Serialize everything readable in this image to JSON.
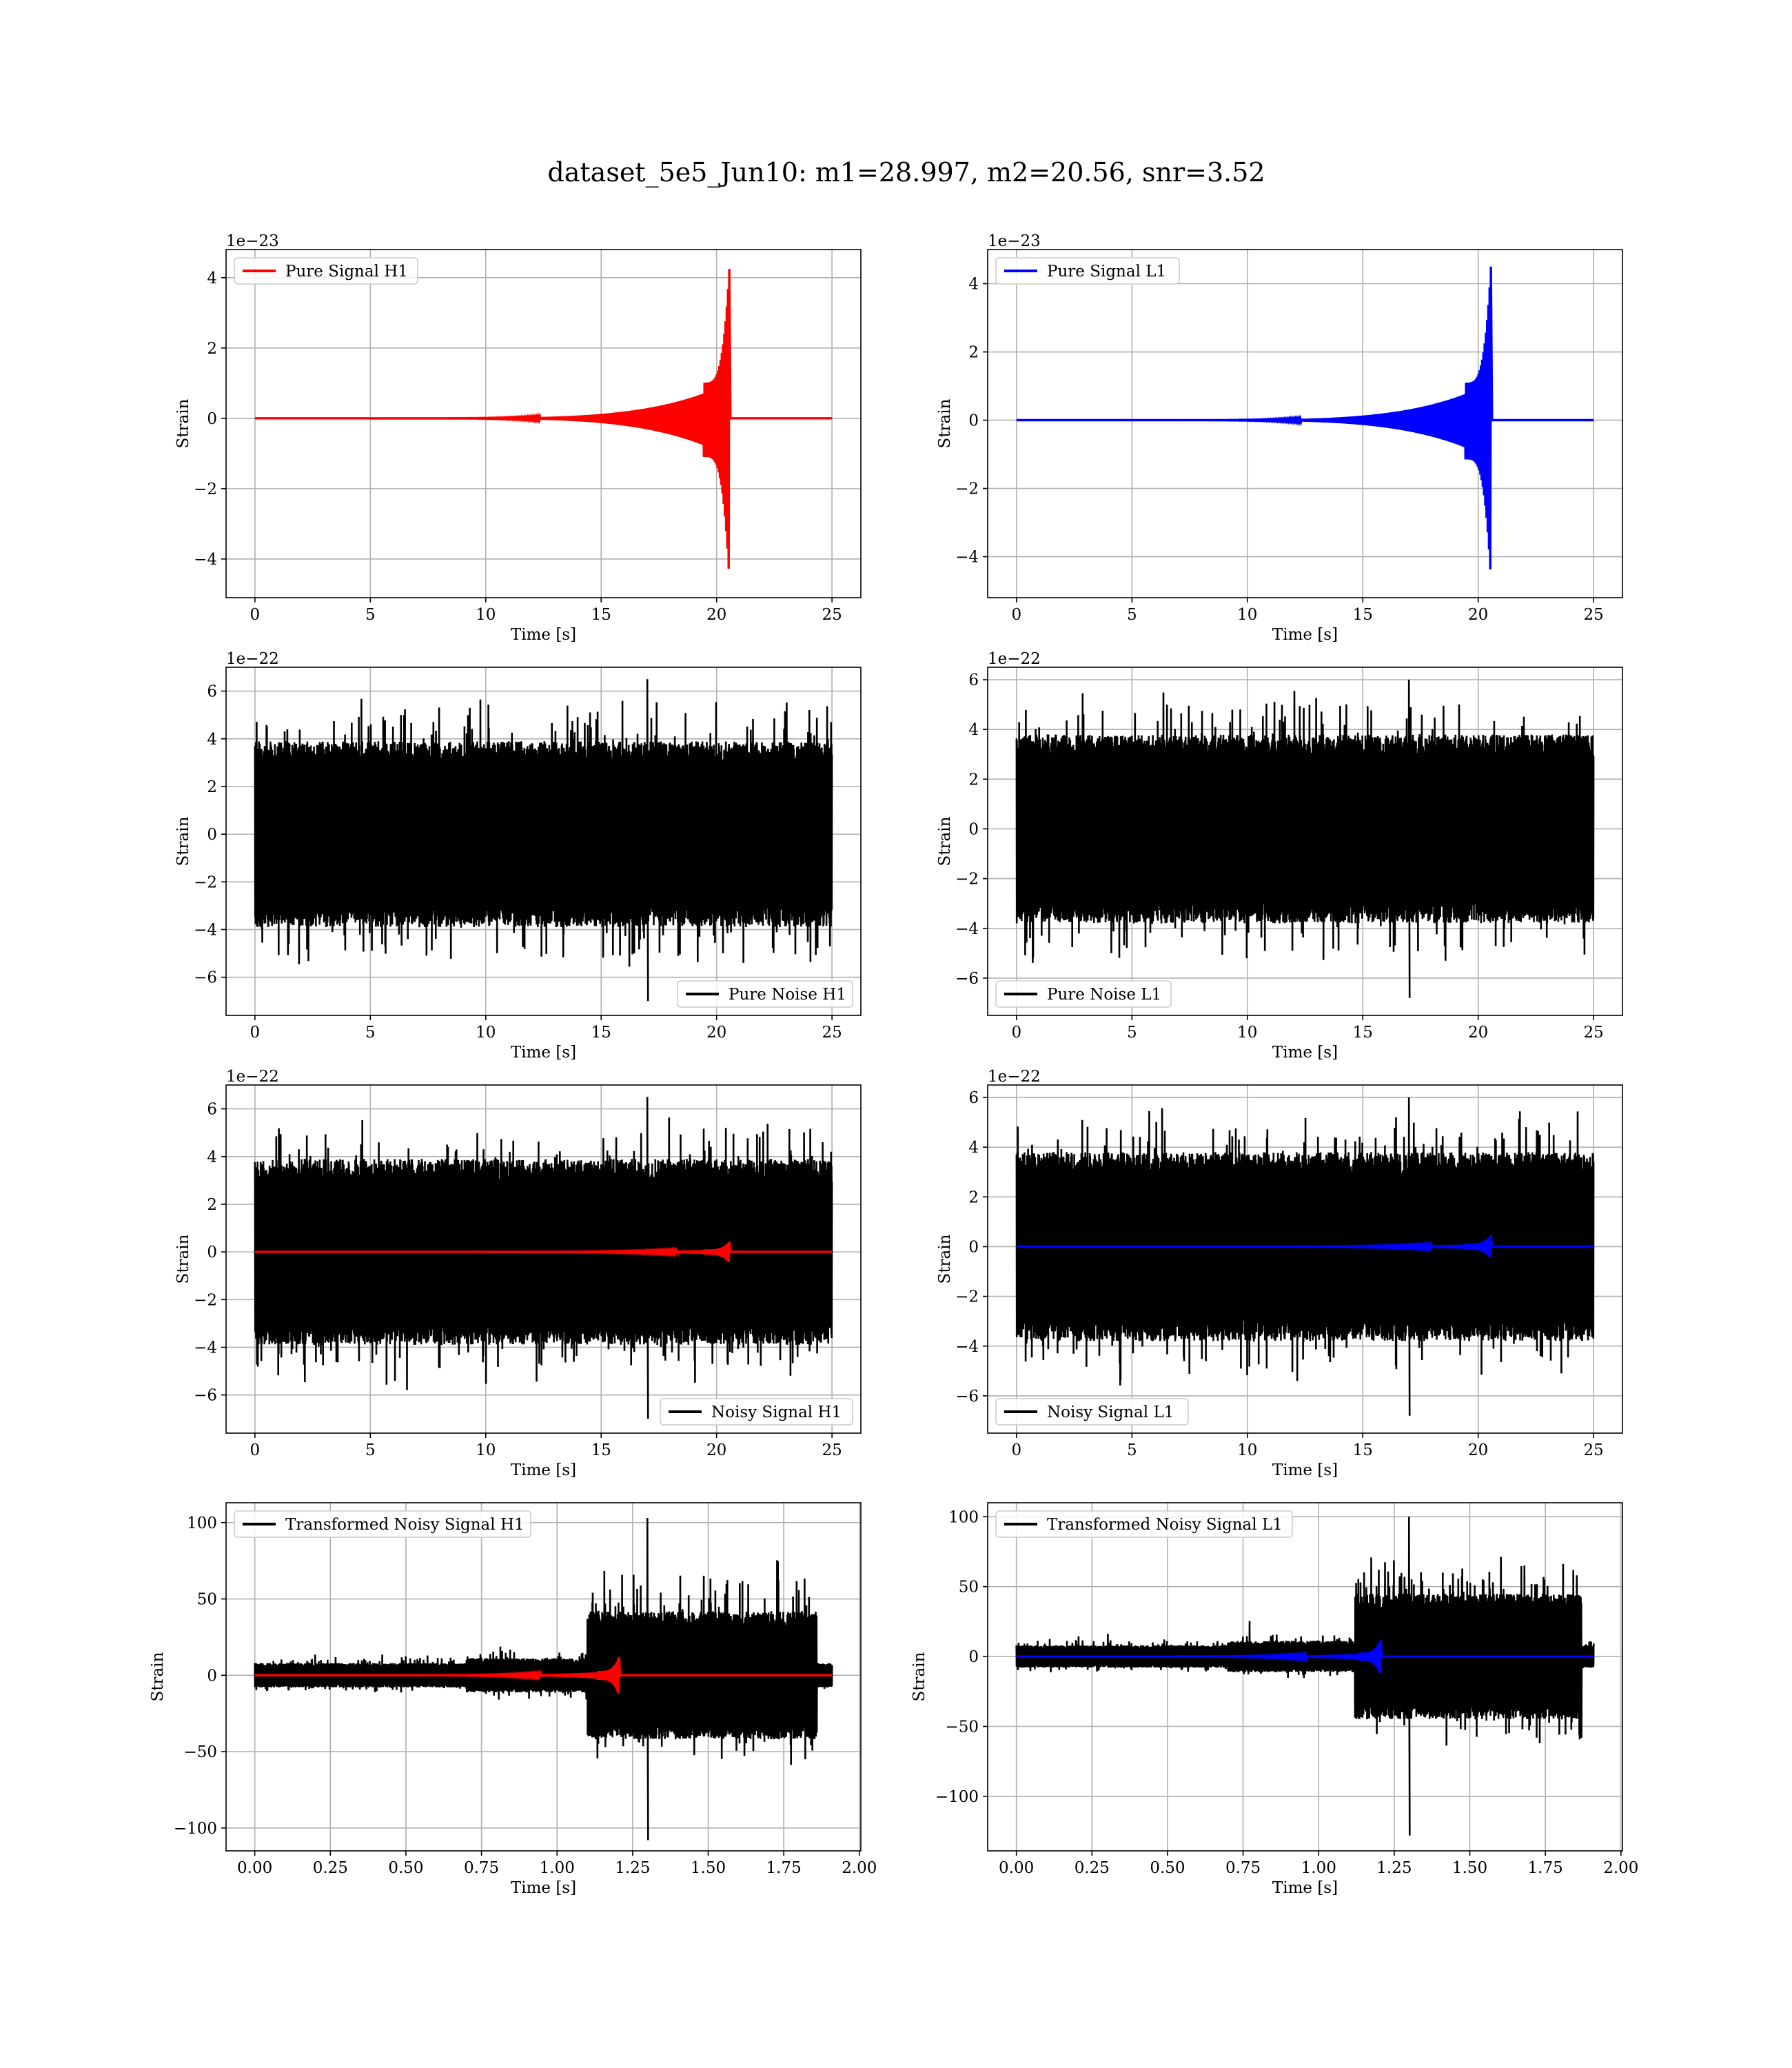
{
  "figure": {
    "title": "dataset_5e5_Jun10: m1=28.997, m2=20.56, snr=3.52"
  },
  "colors": {
    "h1": "#ff0000",
    "l1": "#0000ff",
    "noise": "#000000",
    "grid": "#b0b0b0"
  },
  "chart_data": [
    {
      "id": "pure-signal-h1",
      "type": "line",
      "xlabel": "Time [s]",
      "ylabel": "Strain",
      "offset_label": "1e−23",
      "xlim": [
        -1.25,
        26.25
      ],
      "ylim": [
        -5.1,
        4.8
      ],
      "xticks": [
        0,
        5,
        10,
        15,
        20,
        25
      ],
      "xtick_labels": [
        "0",
        "5",
        "10",
        "15",
        "20",
        "25"
      ],
      "yticks": [
        -4,
        -2,
        0,
        2,
        4
      ],
      "ytick_labels": [
        "−4",
        "−2",
        "0",
        "2",
        "4"
      ],
      "grid": true,
      "legend_position": "upper-left",
      "series": [
        {
          "name": "Pure Signal H1",
          "color": "#ff0000",
          "kind": "chirp",
          "x_start": 0,
          "x_end": 25,
          "merger_time": 20.55,
          "peak_pos": 4.25,
          "peak_neg": -4.6,
          "plateau": 1.1
        }
      ]
    },
    {
      "id": "pure-signal-l1",
      "type": "line",
      "xlabel": "Time [s]",
      "ylabel": "Strain",
      "offset_label": "1e−23",
      "xlim": [
        -1.25,
        26.25
      ],
      "ylim": [
        -5.2,
        5.0
      ],
      "xticks": [
        0,
        5,
        10,
        15,
        20,
        25
      ],
      "xtick_labels": [
        "0",
        "5",
        "10",
        "15",
        "20",
        "25"
      ],
      "yticks": [
        -4,
        -2,
        0,
        2,
        4
      ],
      "ytick_labels": [
        "−4",
        "−2",
        "0",
        "2",
        "4"
      ],
      "grid": true,
      "legend_position": "upper-left",
      "series": [
        {
          "name": "Pure Signal L1",
          "color": "#0000ff",
          "kind": "chirp",
          "x_start": 0,
          "x_end": 25,
          "merger_time": 20.55,
          "peak_pos": 4.5,
          "peak_neg": -4.7,
          "plateau": 1.15
        }
      ]
    },
    {
      "id": "pure-noise-h1",
      "type": "line",
      "xlabel": "Time [s]",
      "ylabel": "Strain",
      "offset_label": "1e−22",
      "xlim": [
        -1.25,
        26.25
      ],
      "ylim": [
        -7.6,
        7.0
      ],
      "xticks": [
        0,
        5,
        10,
        15,
        20,
        25
      ],
      "xtick_labels": [
        "0",
        "5",
        "10",
        "15",
        "20",
        "25"
      ],
      "yticks": [
        -6,
        -4,
        -2,
        0,
        2,
        4,
        6
      ],
      "ytick_labels": [
        "−6",
        "−4",
        "−2",
        "0",
        "2",
        "4",
        "6"
      ],
      "grid": true,
      "legend_position": "lower-right",
      "series": [
        {
          "name": "Pure Noise H1",
          "color": "#000000",
          "kind": "noise",
          "x_start": 0,
          "x_end": 25,
          "band": 3.9,
          "max": 6.5,
          "min": -7.0
        }
      ]
    },
    {
      "id": "pure-noise-l1",
      "type": "line",
      "xlabel": "Time [s]",
      "ylabel": "Strain",
      "offset_label": "1e−22",
      "xlim": [
        -1.25,
        26.25
      ],
      "ylim": [
        -7.5,
        6.5
      ],
      "xticks": [
        0,
        5,
        10,
        15,
        20,
        25
      ],
      "xtick_labels": [
        "0",
        "5",
        "10",
        "15",
        "20",
        "25"
      ],
      "yticks": [
        -6,
        -4,
        -2,
        0,
        2,
        4,
        6
      ],
      "ytick_labels": [
        "−6",
        "−4",
        "−2",
        "0",
        "2",
        "4",
        "6"
      ],
      "grid": true,
      "legend_position": "lower-left",
      "series": [
        {
          "name": "Pure Noise L1",
          "color": "#000000",
          "kind": "noise",
          "x_start": 0,
          "x_end": 25,
          "band": 3.8,
          "max": 6.0,
          "min": -6.8
        }
      ]
    },
    {
      "id": "noisy-signal-h1",
      "type": "line",
      "xlabel": "Time [s]",
      "ylabel": "Strain",
      "offset_label": "1e−22",
      "xlim": [
        -1.25,
        26.25
      ],
      "ylim": [
        -7.6,
        7.0
      ],
      "xticks": [
        0,
        5,
        10,
        15,
        20,
        25
      ],
      "xtick_labels": [
        "0",
        "5",
        "10",
        "15",
        "20",
        "25"
      ],
      "yticks": [
        -6,
        -4,
        -2,
        0,
        2,
        4,
        6
      ],
      "ytick_labels": [
        "−6",
        "−4",
        "−2",
        "0",
        "2",
        "4",
        "6"
      ],
      "grid": true,
      "legend_position": "lower-right",
      "series": [
        {
          "name": "Noisy Signal H1",
          "color": "#000000",
          "kind": "noise",
          "x_start": 0,
          "x_end": 25,
          "band": 3.9,
          "max": 6.5,
          "min": -7.0
        },
        {
          "name": "",
          "color": "#ff0000",
          "kind": "chirp",
          "x_start": 0,
          "x_end": 25,
          "merger_time": 20.55,
          "peak_pos": 0.43,
          "peak_neg": -0.46,
          "plateau": 0.11
        }
      ]
    },
    {
      "id": "noisy-signal-l1",
      "type": "line",
      "xlabel": "Time [s]",
      "ylabel": "Strain",
      "offset_label": "1e−22",
      "xlim": [
        -1.25,
        26.25
      ],
      "ylim": [
        -7.5,
        6.5
      ],
      "xticks": [
        0,
        5,
        10,
        15,
        20,
        25
      ],
      "xtick_labels": [
        "0",
        "5",
        "10",
        "15",
        "20",
        "25"
      ],
      "yticks": [
        -6,
        -4,
        -2,
        0,
        2,
        4,
        6
      ],
      "ytick_labels": [
        "−6",
        "−4",
        "−2",
        "0",
        "2",
        "4",
        "6"
      ],
      "grid": true,
      "legend_position": "lower-left",
      "series": [
        {
          "name": "Noisy Signal L1",
          "color": "#000000",
          "kind": "noise",
          "x_start": 0,
          "x_end": 25,
          "band": 3.8,
          "max": 6.0,
          "min": -6.8
        },
        {
          "name": "",
          "color": "#0000ff",
          "kind": "chirp",
          "x_start": 0,
          "x_end": 25,
          "merger_time": 20.55,
          "peak_pos": 0.45,
          "peak_neg": -0.47,
          "plateau": 0.12
        }
      ]
    },
    {
      "id": "transformed-noisy-signal-h1",
      "type": "line",
      "xlabel": "Time [s]",
      "ylabel": "Strain",
      "offset_label": "",
      "xlim": [
        -0.095,
        2.005
      ],
      "ylim": [
        -115,
        113
      ],
      "xticks": [
        0,
        0.25,
        0.5,
        0.75,
        1.0,
        1.25,
        1.5,
        1.75,
        2.0
      ],
      "xtick_labels": [
        "0.00",
        "0.25",
        "0.50",
        "0.75",
        "1.00",
        "1.25",
        "1.50",
        "1.75",
        "2.00"
      ],
      "yticks": [
        -100,
        -50,
        0,
        50,
        100
      ],
      "ytick_labels": [
        "−100",
        "−50",
        "0",
        "50",
        "100"
      ],
      "grid": true,
      "legend_position": "upper-left",
      "series": [
        {
          "name": "Transformed Noisy Signal H1",
          "color": "#000000",
          "kind": "transformed",
          "x_start": 0,
          "x_end": 1.91,
          "low_band": 8,
          "high_start": 1.1,
          "high_end": 1.86,
          "high_band": 42,
          "max": 103,
          "min": -108
        },
        {
          "name": "",
          "color": "#ff0000",
          "kind": "chirp",
          "x_start": 0,
          "x_end": 1.91,
          "merger_time": 1.205,
          "peak_pos": 12,
          "peak_neg": -13,
          "plateau": 3
        }
      ]
    },
    {
      "id": "transformed-noisy-signal-l1",
      "type": "line",
      "xlabel": "Time [s]",
      "ylabel": "Strain",
      "offset_label": "",
      "xlim": [
        -0.095,
        2.005
      ],
      "ylim": [
        -139,
        110
      ],
      "xticks": [
        0,
        0.25,
        0.5,
        0.75,
        1.0,
        1.25,
        1.5,
        1.75,
        2.0
      ],
      "xtick_labels": [
        "0.00",
        "0.25",
        "0.50",
        "0.75",
        "1.00",
        "1.25",
        "1.50",
        "1.75",
        "2.00"
      ],
      "yticks": [
        -100,
        -50,
        0,
        50,
        100
      ],
      "ytick_labels": [
        "−100",
        "−50",
        "0",
        "50",
        "100"
      ],
      "grid": true,
      "legend_position": "upper-left",
      "series": [
        {
          "name": "Transformed Noisy Signal L1",
          "color": "#000000",
          "kind": "transformed",
          "x_start": 0,
          "x_end": 1.91,
          "low_band": 8,
          "high_start": 1.12,
          "high_end": 1.87,
          "high_band": 45,
          "max": 100,
          "min": -128
        },
        {
          "name": "",
          "color": "#0000ff",
          "kind": "chirp",
          "x_start": 0,
          "x_end": 1.91,
          "merger_time": 1.205,
          "peak_pos": 12,
          "peak_neg": -13,
          "plateau": 3
        }
      ]
    }
  ]
}
